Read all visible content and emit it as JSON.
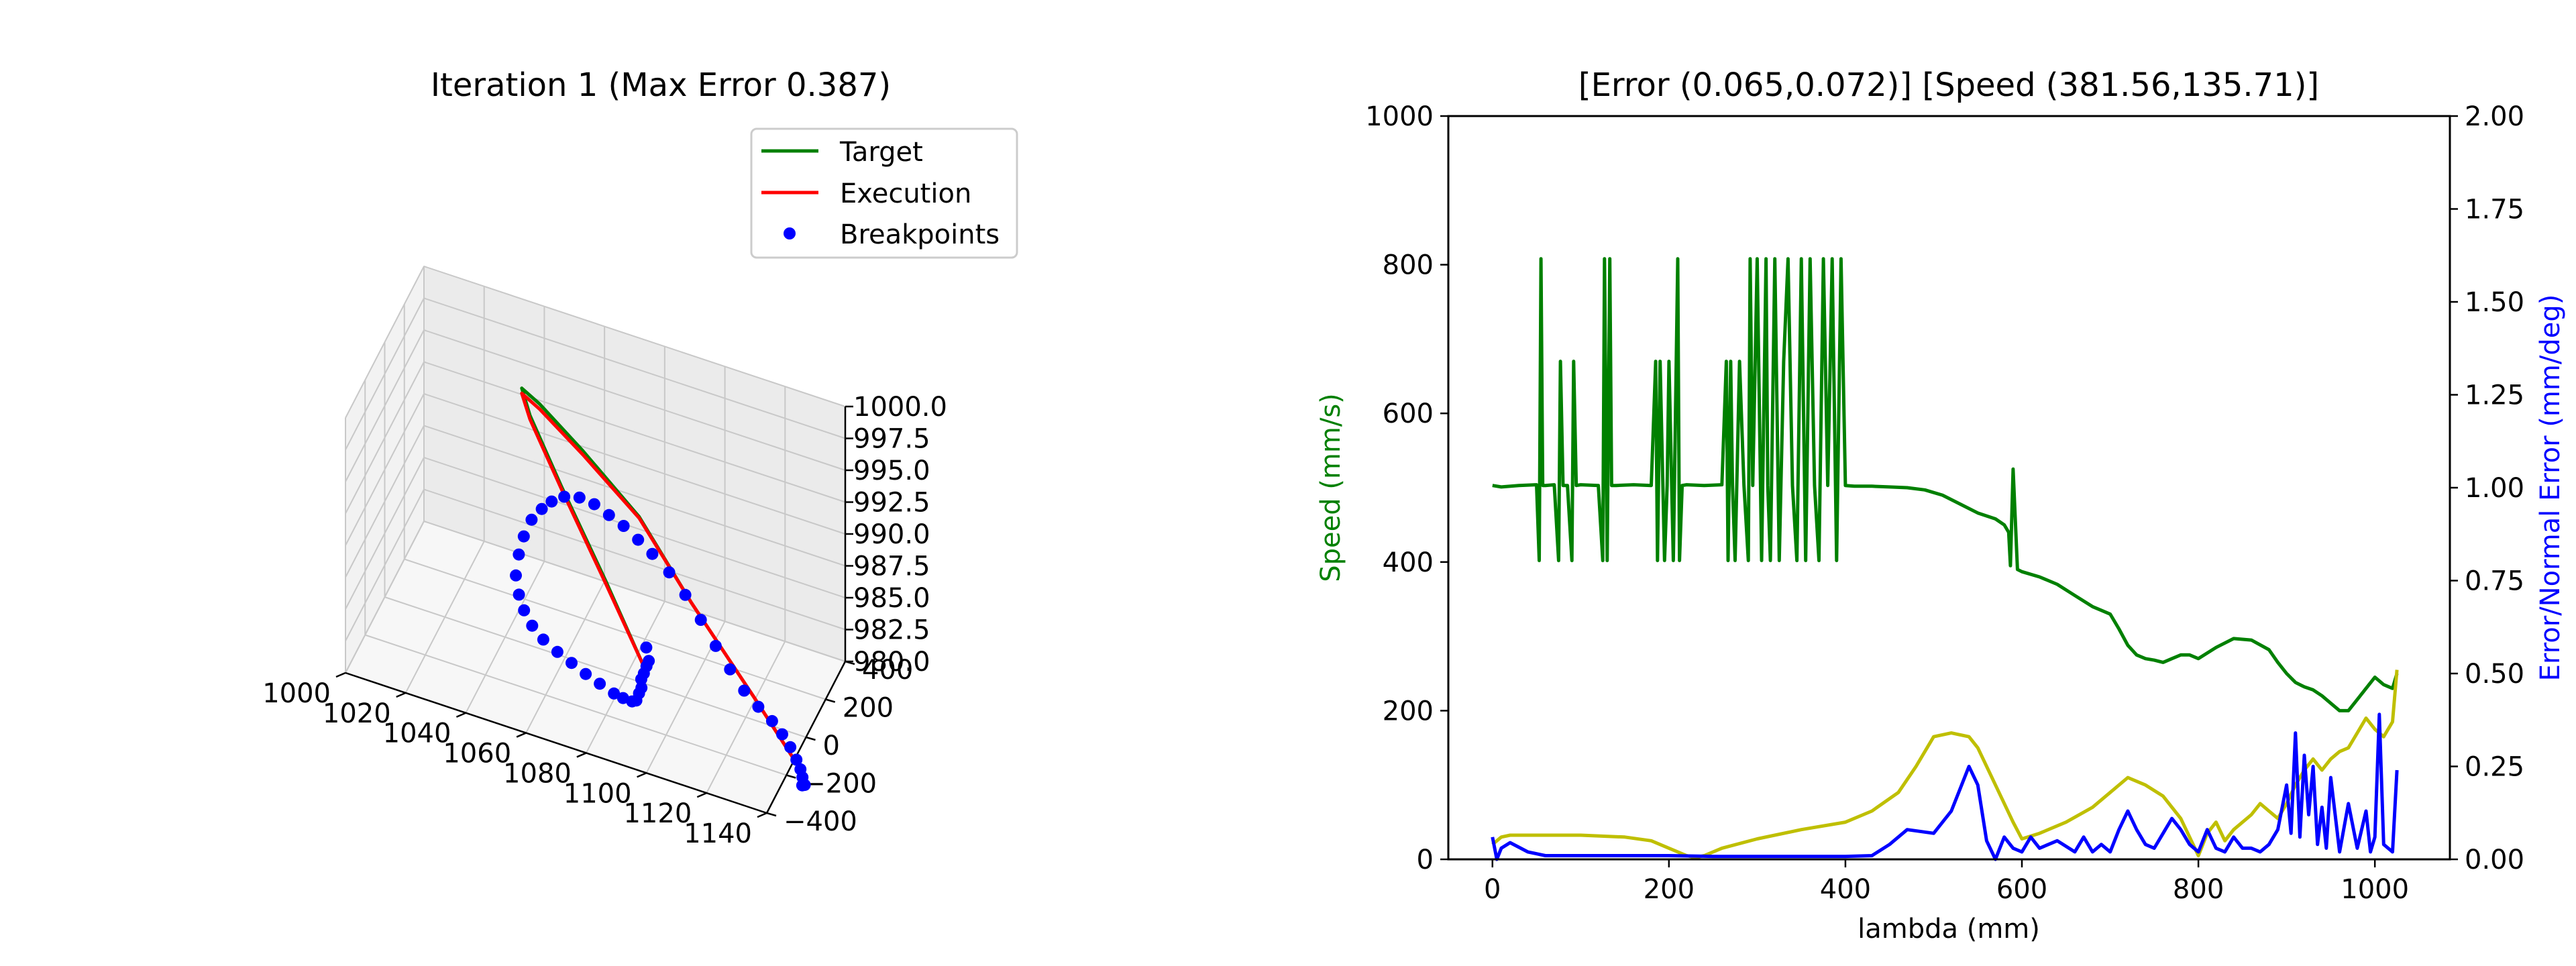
{
  "chart_data": [
    {
      "type": "line3d",
      "title": "Iteration 1 (Max Error 0.387)",
      "xlabel": "",
      "ylabel": "",
      "zlabel": "",
      "xlim": [
        1000,
        1140
      ],
      "ylim": [
        -400,
        400
      ],
      "zlim": [
        980,
        1000
      ],
      "x_ticks": [
        "1000",
        "1020",
        "1040",
        "1060",
        "1080",
        "1100",
        "1120",
        "1140"
      ],
      "y_ticks": [
        "−400",
        "−200",
        "0",
        "200",
        "400"
      ],
      "z_ticks": [
        "980.0",
        "982.5",
        "985.0",
        "987.5",
        "990.0",
        "992.5",
        "995.0",
        "997.5",
        "1000.0"
      ],
      "legend": {
        "placement": "top-right",
        "entries": [
          "Target",
          "Execution",
          "Breakpoints"
        ]
      },
      "colors": {
        "target": "#008000",
        "execution": "#ff0000",
        "breakpoints": "#0000ff"
      },
      "series": [
        {
          "name": "Target",
          "style": "line",
          "color": "#008000",
          "points": [
            [
              1097,
              -330,
              987
            ],
            [
              1080,
              -200,
              990.5
            ],
            [
              1060,
              -40,
              994
            ],
            [
              1045,
              100,
              996.3
            ],
            [
              1040,
              170,
              997
            ],
            [
              1045,
              200,
              995.7
            ],
            [
              1060,
              180,
              993.5
            ],
            [
              1080,
              140,
              990.5
            ],
            [
              1100,
              60,
              986.5
            ],
            [
              1125,
              -70,
              983
            ],
            [
              1145,
              -210,
              981
            ]
          ]
        },
        {
          "name": "Execution",
          "style": "line",
          "color": "#ff0000",
          "points": [
            [
              1097,
              -330,
              987
            ],
            [
              1080,
              -200,
              990.3
            ],
            [
              1060,
              -40,
              993.8
            ],
            [
              1045,
              100,
              996
            ],
            [
              1040,
              170,
              996.6
            ],
            [
              1045,
              200,
              995.3
            ],
            [
              1060,
              180,
              993.2
            ],
            [
              1080,
              140,
              990.4
            ],
            [
              1100,
              60,
              986.5
            ],
            [
              1125,
              -70,
              983
            ],
            [
              1145,
              -210,
              981
            ]
          ]
        },
        {
          "name": "Breakpoints",
          "style": "markers",
          "color": "#0000ff",
          "points": [
            [
              1098,
              -340,
              988.8
            ],
            [
              1099,
              -345,
              987.9
            ],
            [
              1098,
              -338,
              987.3
            ],
            [
              1097,
              -334,
              986.6
            ],
            [
              1096,
              -330,
              986
            ],
            [
              1096,
              -328,
              985.3
            ],
            [
              1095,
              -322,
              984.7
            ],
            [
              1094,
              -318,
              984
            ],
            [
              1092,
              -300,
              983.5
            ],
            [
              1088,
              -270,
              983
            ],
            [
              1084,
              -240,
              982.6
            ],
            [
              1078,
              -200,
              982.3
            ],
            [
              1072,
              -160,
              982
            ],
            [
              1066,
              -120,
              981.8
            ],
            [
              1060,
              -80,
              981.6
            ],
            [
              1054,
              -40,
              981.5
            ],
            [
              1049,
              0,
              981.6
            ],
            [
              1045,
              40,
              981.9
            ],
            [
              1042,
              80,
              982.3
            ],
            [
              1040,
              110,
              983.2
            ],
            [
              1040,
              140,
              984.4
            ],
            [
              1041,
              160,
              985.6
            ],
            [
              1043,
              178,
              986.8
            ],
            [
              1046,
              190,
              987.7
            ],
            [
              1049,
              198,
              988.4
            ],
            [
              1053,
              204,
              989
            ],
            [
              1058,
              206,
              989.3
            ],
            [
              1063,
              204,
              989.2
            ],
            [
              1068,
              200,
              988.8
            ],
            [
              1073,
              196,
              988.4
            ],
            [
              1078,
              190,
              987.8
            ],
            [
              1083,
              182,
              987.2
            ],
            [
              1089,
              170,
              986.4
            ],
            [
              1095,
              150,
              985.4
            ],
            [
              1101,
              124,
              984.3
            ],
            [
              1107,
              92,
              983.2
            ],
            [
              1113,
              54,
              982.4
            ],
            [
              1119,
              14,
              981.8
            ],
            [
              1125,
              -26,
              981.6
            ],
            [
              1131,
              -70,
              981.6
            ],
            [
              1136,
              -120,
              981.7
            ],
            [
              1140,
              -160,
              981.6
            ],
            [
              1143,
              -190,
              981.3
            ],
            [
              1145,
              -210,
              981
            ],
            [
              1146,
              -220,
              980.6
            ],
            [
              1147,
              -228,
              980.2
            ],
            [
              1146,
              -222,
              980
            ]
          ]
        }
      ]
    },
    {
      "type": "line",
      "title": "[Error (0.065,0.072)] [Speed (381.56,135.71)]",
      "xlabel": "lambda (mm)",
      "ylabel": "Speed (mm/s)",
      "ylabel_right": "Error/Normal Error (mm/deg)",
      "xlim": [
        -50,
        1085
      ],
      "ylim": [
        0,
        1000
      ],
      "ylim_right": [
        0,
        2
      ],
      "x_ticks": [
        "0",
        "200",
        "400",
        "600",
        "800",
        "1000"
      ],
      "y_ticks": [
        "0",
        "200",
        "400",
        "600",
        "800",
        "1000"
      ],
      "y_ticks_right": [
        "0.00",
        "0.25",
        "0.50",
        "0.75",
        "1.00",
        "1.25",
        "1.50",
        "1.75",
        "2.00"
      ],
      "grid": false,
      "legend": null,
      "series": [
        {
          "name": "",
          "axis": "left",
          "color": "#008000",
          "x": [
            0,
            10,
            30,
            50,
            53,
            55,
            57,
            60,
            70,
            75,
            77,
            80,
            85,
            90,
            92,
            95,
            100,
            120,
            125,
            127,
            130,
            133,
            135,
            140,
            160,
            180,
            185,
            187,
            190,
            195,
            198,
            200,
            205,
            210,
            212,
            215,
            220,
            240,
            260,
            265,
            267,
            270,
            272,
            275,
            280,
            285,
            290,
            292,
            295,
            300,
            305,
            310,
            312,
            315,
            320,
            325,
            330,
            335,
            340,
            345,
            350,
            355,
            360,
            365,
            370,
            375,
            380,
            385,
            390,
            395,
            400,
            410,
            430,
            450,
            470,
            490,
            510,
            530,
            550,
            570,
            580,
            585,
            587,
            590,
            595,
            600,
            620,
            640,
            660,
            680,
            690,
            700,
            710,
            720,
            730,
            740,
            750,
            760,
            770,
            780,
            790,
            800,
            820,
            840,
            860,
            880,
            890,
            900,
            910,
            920,
            930,
            940,
            950,
            960,
            970,
            980,
            990,
            1000,
            1010,
            1020,
            1025
          ],
          "y": [
            503,
            501,
            503,
            504,
            402,
            808,
            503,
            503,
            504,
            402,
            670,
            503,
            503,
            402,
            670,
            503,
            504,
            503,
            402,
            808,
            402,
            808,
            503,
            503,
            504,
            503,
            670,
            402,
            670,
            402,
            503,
            670,
            402,
            808,
            402,
            503,
            504,
            503,
            504,
            670,
            402,
            670,
            503,
            402,
            670,
            503,
            402,
            808,
            503,
            808,
            402,
            808,
            503,
            402,
            808,
            402,
            670,
            808,
            503,
            402,
            808,
            402,
            808,
            503,
            402,
            808,
            503,
            808,
            402,
            808,
            503,
            502,
            502,
            501,
            500,
            497,
            490,
            478,
            466,
            458,
            450,
            440,
            395,
            525,
            390,
            387,
            380,
            370,
            355,
            340,
            335,
            330,
            310,
            288,
            275,
            270,
            268,
            265,
            270,
            275,
            275,
            270,
            285,
            297,
            295,
            282,
            265,
            250,
            238,
            232,
            228,
            220,
            210,
            200,
            200,
            215,
            230,
            245,
            235,
            230,
            250
          ]
        },
        {
          "name": "",
          "axis": "right",
          "color": "#bfbf00",
          "x": [
            0,
            10,
            20,
            50,
            100,
            150,
            180,
            200,
            220,
            230,
            240,
            260,
            300,
            350,
            400,
            430,
            460,
            480,
            500,
            520,
            540,
            550,
            570,
            590,
            600,
            620,
            650,
            680,
            700,
            720,
            740,
            760,
            780,
            790,
            800,
            810,
            820,
            830,
            840,
            850,
            860,
            870,
            880,
            890,
            900,
            910,
            920,
            930,
            940,
            950,
            960,
            970,
            980,
            990,
            1000,
            1010,
            1020,
            1025
          ],
          "y": [
            0.04,
            0.06,
            0.065,
            0.065,
            0.065,
            0.06,
            0.05,
            0.03,
            0.01,
            0.005,
            0.01,
            0.03,
            0.055,
            0.08,
            0.1,
            0.13,
            0.18,
            0.25,
            0.33,
            0.34,
            0.33,
            0.3,
            0.2,
            0.1,
            0.055,
            0.07,
            0.1,
            0.14,
            0.18,
            0.22,
            0.2,
            0.17,
            0.11,
            0.06,
            0.01,
            0.07,
            0.1,
            0.05,
            0.08,
            0.1,
            0.12,
            0.15,
            0.13,
            0.11,
            0.15,
            0.2,
            0.24,
            0.27,
            0.24,
            0.27,
            0.29,
            0.3,
            0.34,
            0.38,
            0.35,
            0.33,
            0.37,
            0.51
          ]
        },
        {
          "name": "",
          "axis": "right",
          "color": "#0000ff",
          "x": [
            0,
            5,
            10,
            20,
            40,
            60,
            100,
            150,
            200,
            250,
            300,
            350,
            400,
            430,
            450,
            470,
            500,
            520,
            540,
            550,
            560,
            570,
            575,
            580,
            590,
            600,
            610,
            620,
            640,
            660,
            670,
            680,
            690,
            700,
            710,
            720,
            730,
            740,
            750,
            760,
            770,
            780,
            790,
            800,
            810,
            820,
            830,
            840,
            850,
            860,
            870,
            880,
            890,
            900,
            905,
            910,
            915,
            920,
            925,
            930,
            935,
            940,
            945,
            950,
            960,
            970,
            980,
            990,
            995,
            1000,
            1005,
            1010,
            1020,
            1025
          ],
          "y": [
            0.06,
            0,
            0.03,
            0.045,
            0.02,
            0.01,
            0.01,
            0.01,
            0.01,
            0.008,
            0.008,
            0.008,
            0.008,
            0.01,
            0.04,
            0.08,
            0.07,
            0.13,
            0.25,
            0.2,
            0.05,
            0.0,
            0.03,
            0.06,
            0.03,
            0.02,
            0.06,
            0.03,
            0.05,
            0.02,
            0.06,
            0.02,
            0.04,
            0.02,
            0.08,
            0.13,
            0.08,
            0.04,
            0.03,
            0.07,
            0.11,
            0.08,
            0.04,
            0.02,
            0.08,
            0.03,
            0.02,
            0.06,
            0.03,
            0.03,
            0.02,
            0.04,
            0.08,
            0.2,
            0.07,
            0.34,
            0.06,
            0.28,
            0.12,
            0.25,
            0.04,
            0.14,
            0.03,
            0.22,
            0.02,
            0.15,
            0.03,
            0.13,
            0.02,
            0.06,
            0.39,
            0.04,
            0.02,
            0.24
          ]
        }
      ]
    }
  ]
}
